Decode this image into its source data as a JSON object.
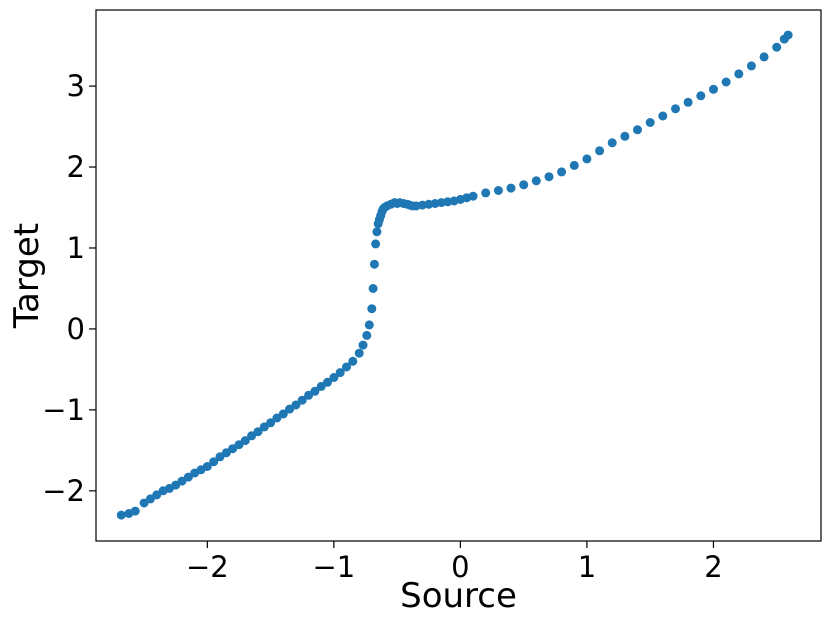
{
  "chart_data": {
    "type": "scatter",
    "title": "",
    "xlabel": "Source",
    "ylabel": "Target",
    "xlim": [
      -2.88,
      2.85
    ],
    "ylim": [
      -2.62,
      3.94
    ],
    "xticks": [
      -2,
      -1,
      0,
      1,
      2
    ],
    "xtick_labels": [
      "−2",
      "−1",
      "0",
      "1",
      "2"
    ],
    "yticks": [
      -2,
      -1,
      0,
      1,
      2,
      3
    ],
    "ytick_labels": [
      "−2",
      "−1",
      "0",
      "1",
      "2",
      "3"
    ],
    "grid": false,
    "legend": "none",
    "marker_color": "#1f77b4",
    "series": [
      {
        "x": [
          -2.68,
          -2.62,
          -2.57,
          -2.5,
          -2.45,
          -2.4,
          -2.35,
          -2.3,
          -2.25,
          -2.2,
          -2.15,
          -2.1,
          -2.05,
          -2.0,
          -1.95,
          -1.9,
          -1.85,
          -1.8,
          -1.75,
          -1.7,
          -1.65,
          -1.6,
          -1.55,
          -1.5,
          -1.45,
          -1.4,
          -1.35,
          -1.3,
          -1.25,
          -1.2,
          -1.15,
          -1.1,
          -1.05,
          -1.0,
          -0.95,
          -0.9,
          -0.85,
          -0.8,
          -0.77,
          -0.74,
          -0.72,
          -0.7,
          -0.69,
          -0.68,
          -0.67,
          -0.66,
          -0.65,
          -0.64,
          -0.63,
          -0.62,
          -0.61,
          -0.6,
          -0.58,
          -0.55,
          -0.52,
          -0.5,
          -0.48,
          -0.45,
          -0.42,
          -0.4,
          -0.38,
          -0.35,
          -0.3,
          -0.25,
          -0.2,
          -0.15,
          -0.1,
          -0.05,
          0.0,
          0.05,
          0.1,
          0.2,
          0.3,
          0.4,
          0.5,
          0.6,
          0.7,
          0.8,
          0.9,
          1.0,
          1.1,
          1.2,
          1.3,
          1.4,
          1.5,
          1.6,
          1.7,
          1.8,
          1.9,
          2.0,
          2.1,
          2.2,
          2.3,
          2.4,
          2.5,
          2.56,
          2.59
        ],
        "y": [
          -2.3,
          -2.28,
          -2.25,
          -2.15,
          -2.1,
          -2.05,
          -2.0,
          -1.97,
          -1.93,
          -1.88,
          -1.83,
          -1.78,
          -1.74,
          -1.7,
          -1.64,
          -1.58,
          -1.53,
          -1.48,
          -1.43,
          -1.38,
          -1.32,
          -1.27,
          -1.21,
          -1.16,
          -1.1,
          -1.05,
          -0.99,
          -0.94,
          -0.88,
          -0.82,
          -0.77,
          -0.71,
          -0.66,
          -0.6,
          -0.54,
          -0.47,
          -0.4,
          -0.3,
          -0.2,
          -0.08,
          0.05,
          0.25,
          0.5,
          0.8,
          1.05,
          1.2,
          1.3,
          1.35,
          1.4,
          1.45,
          1.48,
          1.5,
          1.52,
          1.54,
          1.56,
          1.55,
          1.56,
          1.55,
          1.54,
          1.53,
          1.52,
          1.52,
          1.53,
          1.54,
          1.55,
          1.56,
          1.57,
          1.58,
          1.6,
          1.62,
          1.64,
          1.68,
          1.71,
          1.74,
          1.78,
          1.83,
          1.88,
          1.94,
          2.02,
          2.1,
          2.2,
          2.3,
          2.38,
          2.46,
          2.55,
          2.63,
          2.72,
          2.8,
          2.88,
          2.96,
          3.05,
          3.15,
          3.25,
          3.36,
          3.48,
          3.58,
          3.63
        ]
      }
    ]
  }
}
